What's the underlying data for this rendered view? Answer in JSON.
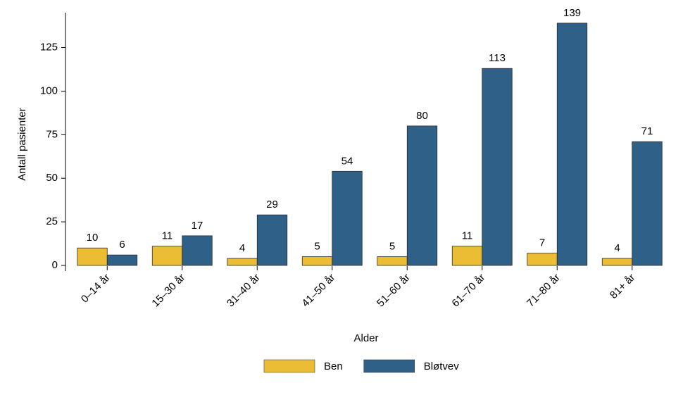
{
  "chart_data": {
    "type": "bar",
    "xlabel": "Alder",
    "ylabel": "Antall pasienter",
    "categories": [
      "0–14 år",
      "15–30 år",
      "31–40 år",
      "41–50 år",
      "51–60 år",
      "61–70 år",
      "71–80 år",
      "81+ år"
    ],
    "series": [
      {
        "name": "Ben",
        "color": "#ebbd34",
        "values": [
          10,
          11,
          4,
          5,
          5,
          11,
          7,
          4
        ]
      },
      {
        "name": "Bløtvev",
        "color": "#2f6087",
        "values": [
          6,
          17,
          29,
          54,
          80,
          113,
          139,
          71
        ]
      }
    ],
    "ylim": [
      0,
      145
    ],
    "yticks": [
      0,
      25,
      50,
      75,
      100,
      125
    ],
    "legend": "bottom"
  }
}
